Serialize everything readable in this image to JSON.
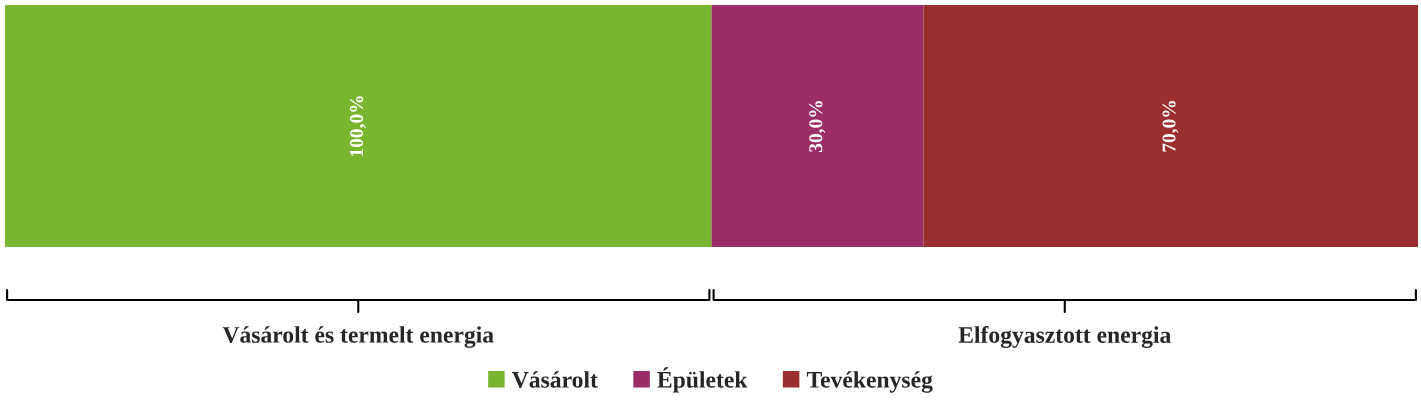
{
  "chart_data": {
    "type": "bar",
    "orientation": "horizontal",
    "stacked": true,
    "categories": [
      null
    ],
    "series": [
      {
        "name": "Vásárolt",
        "color": "#7ab52f",
        "values": [
          100
        ],
        "value_labels": [
          "100,0%"
        ]
      },
      {
        "name": "Épületek",
        "color": "#9b2d68",
        "values": [
          30
        ],
        "value_labels": [
          "30,0%"
        ]
      },
      {
        "name": "Tevékenység",
        "color": "#9a2f30",
        "values": [
          70
        ],
        "value_labels": [
          "70,0%"
        ]
      }
    ],
    "xlim": [
      0,
      200
    ],
    "tick_labels": false,
    "legend": "bottom",
    "annotations": [
      "Vásárolt és termelt energia",
      "Elfogyasztott energia"
    ]
  }
}
